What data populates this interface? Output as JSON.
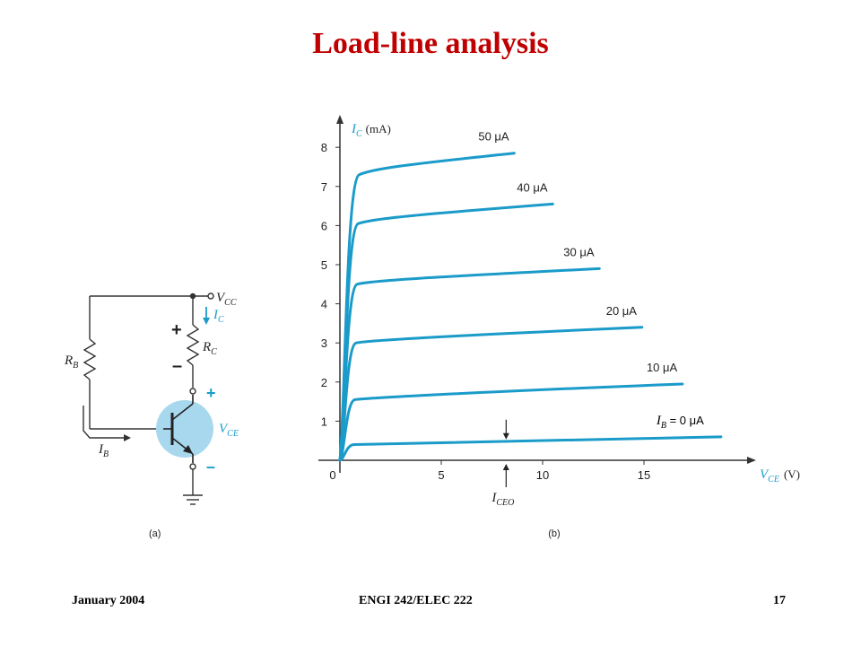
{
  "slide": {
    "title": "Load-line analysis",
    "footer_left": "January 2004",
    "footer_center": "ENGI 242/ELEC 222",
    "footer_right": "17"
  },
  "colors": {
    "title": "#c00000",
    "curve": "#1a9bc9",
    "transistor_fill": "#a8d8ee",
    "text": "#222222"
  },
  "circuit": {
    "label": "(a)",
    "vcc_main": "V",
    "vcc_sub": "CC",
    "ic_main": "I",
    "ic_sub": "C",
    "rc_main": "R",
    "rc_sub": "C",
    "rb_main": "R",
    "rb_sub": "B",
    "ib_main": "I",
    "ib_sub": "B",
    "vce_main": "V",
    "vce_sub": "CE",
    "plus": "+",
    "minus": "–"
  },
  "chart_data": {
    "type": "line",
    "label": "(b)",
    "ylabel_main": "I",
    "ylabel_sub": "C",
    "ylabel_unit": "(mA)",
    "xlabel_main": "V",
    "xlabel_sub": "CE",
    "xlabel_unit": "(V)",
    "xlim": [
      0,
      20
    ],
    "ylim": [
      0,
      8.6
    ],
    "x_ticks": [
      0,
      5,
      10,
      15
    ],
    "y_ticks": [
      1,
      2,
      3,
      4,
      5,
      6,
      7,
      8
    ],
    "origin_label": "0",
    "iceo_main": "I",
    "iceo_sub": "CEO",
    "iceo_x": 8.2,
    "series": [
      {
        "name": "I_B = 0 μA",
        "label": "I",
        "label_sub": "B",
        "label_rest": " = 0 μA",
        "sat": 0.4,
        "end_x": 18.8,
        "end_y": 0.6
      },
      {
        "name": "10 μA",
        "label": "10 μA",
        "sat": 1.55,
        "end_x": 16.9,
        "end_y": 1.95
      },
      {
        "name": "20 μA",
        "label": "20 μA",
        "sat": 3.0,
        "end_x": 14.9,
        "end_y": 3.4
      },
      {
        "name": "30 μA",
        "label": "30 μA",
        "sat": 4.5,
        "end_x": 12.8,
        "end_y": 4.9
      },
      {
        "name": "40 μA",
        "label": "40 μA",
        "sat": 6.05,
        "end_x": 10.5,
        "end_y": 6.55
      },
      {
        "name": "50 μA",
        "label": "50 μA",
        "sat": 7.3,
        "end_x": 8.6,
        "end_y": 7.85
      }
    ]
  }
}
